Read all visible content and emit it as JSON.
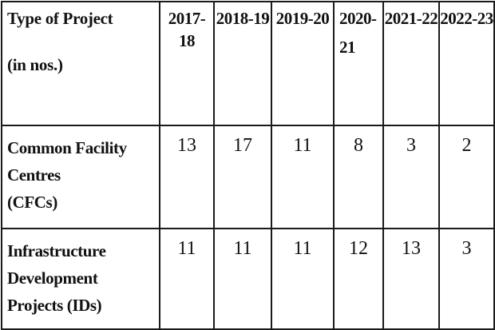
{
  "table": {
    "header": {
      "type_line1": "Type of Project",
      "type_line2": "(in nos.)",
      "years": [
        "2017-18",
        "2018-19",
        "2019-20",
        "2020-",
        "2021-22",
        "2022-23"
      ],
      "year_2020_line2": "21"
    },
    "rows": [
      {
        "label_line1": "Common Facility Centres",
        "label_line2": "(CFCs)",
        "values": [
          "13",
          "17",
          "11",
          "8",
          "3",
          "2"
        ]
      },
      {
        "label_line1": "Infrastructure",
        "label_line2": "Development Projects (IDs)",
        "values": [
          "11",
          "11",
          "11",
          "12",
          "13",
          "3"
        ]
      }
    ]
  }
}
